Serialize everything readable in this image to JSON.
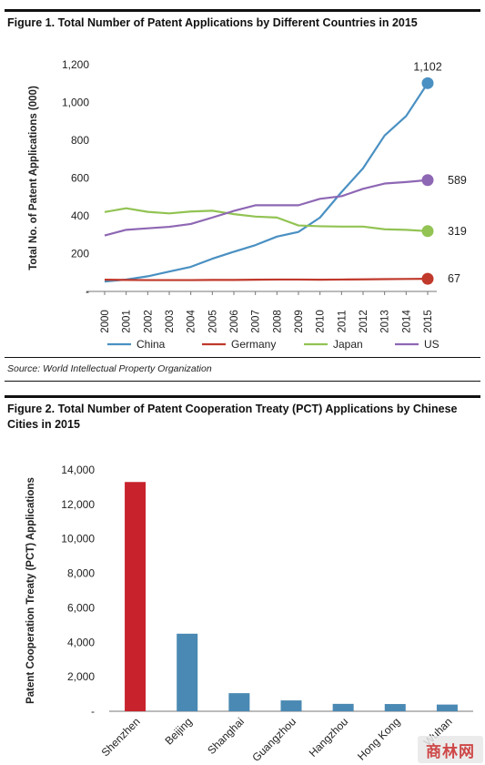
{
  "figure1": {
    "title": "Figure 1. Total Number of Patent Applications by Different Countries in 2015",
    "source": "Source: World Intellectual Property Organization",
    "chart_data": {
      "type": "line",
      "x": [
        "2000",
        "2001",
        "2002",
        "2003",
        "2004",
        "2005",
        "2006",
        "2007",
        "2008",
        "2009",
        "2010",
        "2011",
        "2012",
        "2013",
        "2014",
        "2015"
      ],
      "ylabel": "Total No. of Patent Applications (000)",
      "ylim": [
        0,
        1200
      ],
      "yticks": [
        0,
        200,
        400,
        600,
        800,
        1000,
        1200
      ],
      "ytick_labels": [
        "-",
        "200",
        "400",
        "600",
        "800",
        "1,000",
        "1,200"
      ],
      "grid": false,
      "legend_position": "bottom",
      "series": [
        {
          "name": "China",
          "color": "#4a90c2",
          "end_label": "1,102",
          "values": [
            52,
            63,
            80,
            105,
            130,
            173,
            210,
            245,
            290,
            315,
            391,
            526,
            652,
            825,
            928,
            1102
          ]
        },
        {
          "name": "Germany",
          "color": "#c0392b",
          "end_label": "67",
          "values": [
            62,
            61,
            60,
            60,
            60,
            61,
            61,
            62,
            63,
            63,
            62,
            63,
            64,
            65,
            66,
            67
          ]
        },
        {
          "name": "Japan",
          "color": "#92c353",
          "end_label": "319",
          "values": [
            420,
            440,
            421,
            413,
            423,
            427,
            409,
            396,
            391,
            349,
            345,
            343,
            343,
            329,
            326,
            319
          ]
        },
        {
          "name": "US",
          "color": "#8e67b4",
          "end_label": "589",
          "values": [
            296,
            326,
            334,
            342,
            357,
            391,
            426,
            456,
            456,
            456,
            490,
            504,
            543,
            571,
            579,
            589
          ]
        }
      ]
    }
  },
  "figure2": {
    "title": "Figure 2. Total Number of Patent Cooperation Treaty (PCT) Applications by Chinese Cities in 2015",
    "chart_data": {
      "type": "bar",
      "categories": [
        "Shenzhen",
        "Beijing",
        "Shanghai",
        "Guangzhou",
        "Hangzhou",
        "Hong Kong",
        "Wuhan"
      ],
      "values": [
        13300,
        4500,
        1050,
        630,
        430,
        420,
        390
      ],
      "bar_colors": [
        "#c8232c",
        "#4a89b3",
        "#4a89b3",
        "#4a89b3",
        "#4a89b3",
        "#4a89b3",
        "#4a89b3"
      ],
      "ylabel": "Patent Cooperation Treaty (PCT) Applications",
      "ylim": [
        0,
        14000
      ],
      "yticks": [
        0,
        2000,
        4000,
        6000,
        8000,
        10000,
        12000,
        14000
      ],
      "ytick_labels": [
        "-",
        "2,000",
        "4,000",
        "6,000",
        "8,000",
        "10,000",
        "12,000",
        "14,000"
      ],
      "grid": false
    }
  },
  "watermark": {
    "text": "商林网"
  }
}
